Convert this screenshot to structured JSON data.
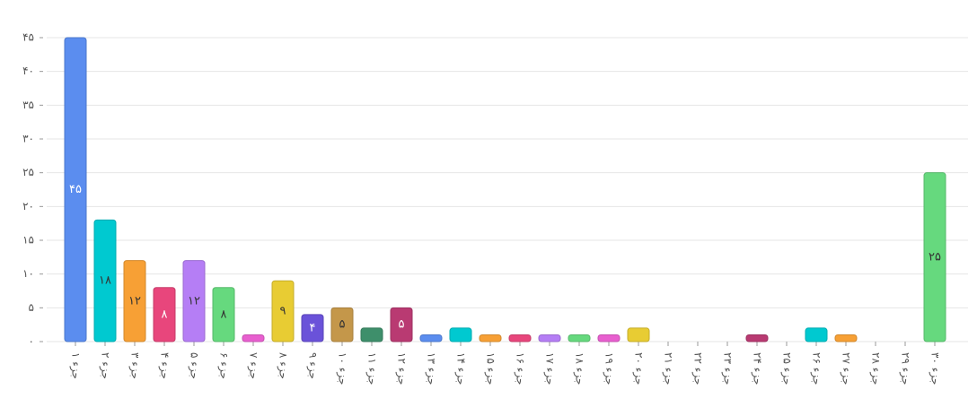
{
  "chart_data": {
    "type": "bar",
    "categories": [
      "جزء ۱",
      "جزء ۲",
      "جزء ۳",
      "جزء ۴",
      "جزء ۵",
      "جزء ۶",
      "جزء ۷",
      "جزء ۸",
      "جزء ۹",
      "جزء ۱۰",
      "جزء ۱۱",
      "جزء ۱۲",
      "جزء ۱۳",
      "جزء ۱۴",
      "جزء ۱۵",
      "جزء ۱۶",
      "جزء ۱۷",
      "جزء ۱۸",
      "جزء ۱۹",
      "جزء ۲۰",
      "جزء ۲۱",
      "جزء ۲۲",
      "جزء ۲۳",
      "جزء ۲۴",
      "جزء ۲۵",
      "جزء ۲۶",
      "جزء ۲۷",
      "جزء ۲۸",
      "جزء ۲۹",
      "جزء ۳۰"
    ],
    "values": [
      45,
      18,
      12,
      8,
      12,
      8,
      1,
      9,
      4,
      5,
      2,
      5,
      1,
      2,
      1,
      1,
      1,
      1,
      1,
      2,
      0,
      0,
      0,
      1,
      0,
      2,
      1,
      0,
      0,
      25
    ],
    "value_labels": [
      "۴۵",
      "۱۸",
      "۱۲",
      "۸",
      "۱۲",
      "۸",
      null,
      "۹",
      "۴",
      "۵",
      null,
      "۵",
      null,
      null,
      null,
      null,
      null,
      null,
      null,
      null,
      null,
      null,
      null,
      null,
      null,
      null,
      null,
      null,
      null,
      "۲۵"
    ],
    "colors": [
      "#5b8def",
      "#00c9d0",
      "#f7a035",
      "#e8467c",
      "#b57ef5",
      "#66d97e",
      "#e85fcf",
      "#e8cc33",
      "#6a52d9",
      "#c4974a",
      "#3e8f6b",
      "#b93a72"
    ],
    "ylim": [
      0,
      45
    ],
    "yticks": [
      {
        "value": 0,
        "label": "۰"
      },
      {
        "value": 5,
        "label": "۵"
      },
      {
        "value": 10,
        "label": "۱۰"
      },
      {
        "value": 15,
        "label": "۱۵"
      },
      {
        "value": 20,
        "label": "۲۰"
      },
      {
        "value": 25,
        "label": "۲۵"
      },
      {
        "value": 30,
        "label": "۳۰"
      },
      {
        "value": 35,
        "label": "۳۵"
      },
      {
        "value": 40,
        "label": "۴۰"
      },
      {
        "value": 45,
        "label": "۴۵"
      }
    ],
    "grid": true
  }
}
